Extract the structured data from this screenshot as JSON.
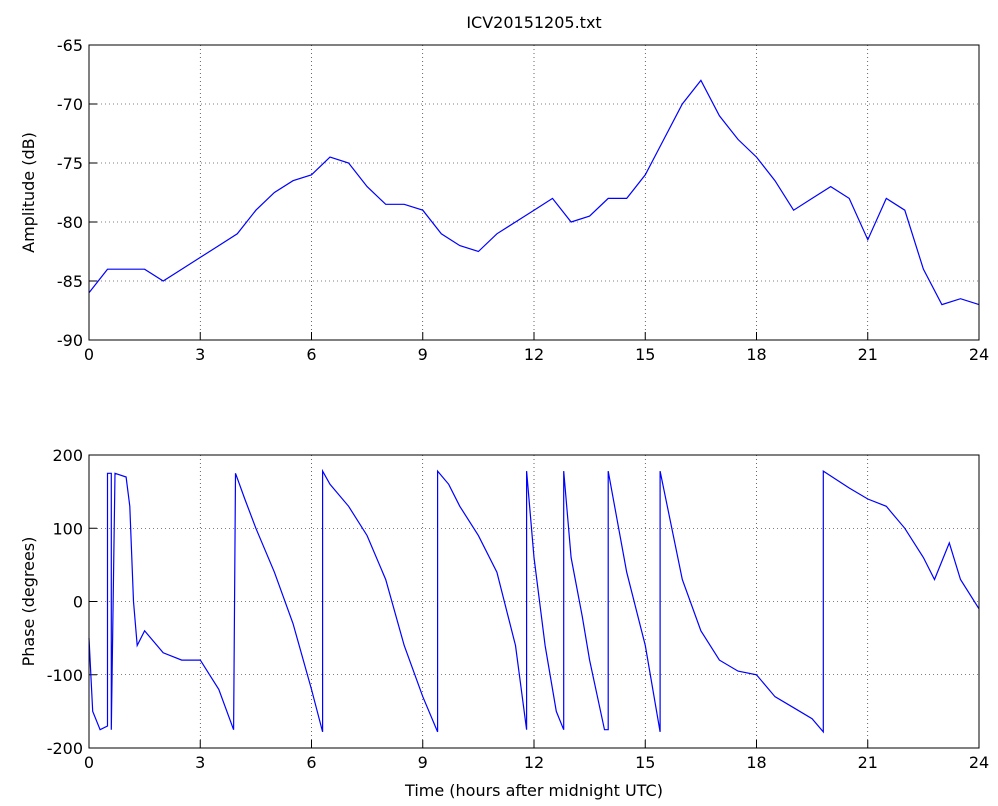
{
  "chart_data": [
    {
      "type": "line",
      "title": "ICV20151205.txt",
      "ylabel": "Amplitude (dB)",
      "color": "#0000ff",
      "grid": true,
      "xlim": [
        0,
        24
      ],
      "xticks": [
        0,
        3,
        6,
        9,
        12,
        15,
        18,
        21,
        24
      ],
      "ylim": [
        -90,
        -65
      ],
      "yticks": [
        -90,
        -85,
        -80,
        -75,
        -70,
        -65
      ],
      "x": [
        0,
        0.5,
        1,
        1.5,
        2,
        2.5,
        3,
        3.5,
        4,
        4.5,
        5,
        5.5,
        6,
        6.5,
        7,
        7.5,
        8,
        8.5,
        9,
        9.5,
        10,
        10.5,
        11,
        11.5,
        12,
        12.5,
        13,
        13.5,
        14,
        14.5,
        15,
        15.5,
        16,
        16.5,
        17,
        17.5,
        18,
        18.5,
        19,
        19.5,
        20,
        20.5,
        21,
        21.5,
        22,
        22.5,
        23,
        23.5,
        24
      ],
      "values": [
        -86,
        -84,
        -84,
        -84,
        -85,
        -84,
        -83,
        -82,
        -81,
        -79,
        -77.5,
        -76.5,
        -76,
        -74.5,
        -75,
        -77,
        -78.5,
        -78.5,
        -79,
        -81,
        -82,
        -82.5,
        -81,
        -80,
        -79,
        -78,
        -80,
        -79.5,
        -78,
        -78,
        -76,
        -73,
        -70,
        -68,
        -71,
        -73,
        -74.5,
        -76.5,
        -79,
        -78,
        -77,
        -78,
        -81.5,
        -78,
        -79,
        -84,
        -87,
        -86.5,
        -87
      ]
    },
    {
      "type": "line",
      "ylabel": "Phase (degrees)",
      "xlabel": "Time (hours after midnight UTC)",
      "color": "#0000ff",
      "grid": true,
      "xlim": [
        0,
        24
      ],
      "xticks": [
        0,
        3,
        6,
        9,
        12,
        15,
        18,
        21,
        24
      ],
      "ylim": [
        -200,
        200
      ],
      "yticks": [
        -200,
        -100,
        0,
        100,
        200
      ],
      "x": [
        0,
        0.1,
        0.3,
        0.5,
        0.5,
        0.6,
        0.6,
        0.7,
        1,
        1.1,
        1.2,
        1.3,
        1.5,
        2,
        2.5,
        3,
        3.5,
        3.9,
        3.95,
        4.2,
        4.5,
        5,
        5.5,
        6,
        6.3,
        6.3,
        6.5,
        7,
        7.5,
        8,
        8.5,
        9,
        9.4,
        9.4,
        9.7,
        10,
        10.5,
        11,
        11.5,
        11.8,
        11.8,
        12,
        12.3,
        12.6,
        12.8,
        12.8,
        13,
        13.3,
        13.5,
        13.9,
        14,
        14,
        14.5,
        15,
        15.4,
        15.4,
        16,
        16.5,
        17,
        17.5,
        18,
        18.5,
        19,
        19.5,
        19.8,
        19.8,
        20.5,
        21,
        21.5,
        22,
        22.5,
        22.8,
        23.2,
        23.5,
        24
      ],
      "values": [
        -50,
        -150,
        -175,
        -170,
        175,
        175,
        -175,
        175,
        170,
        130,
        0,
        -60,
        -40,
        -70,
        -80,
        -80,
        -120,
        -175,
        175,
        140,
        100,
        40,
        -30,
        -120,
        -178,
        178,
        160,
        130,
        90,
        30,
        -60,
        -130,
        -178,
        178,
        160,
        130,
        90,
        40,
        -60,
        -175,
        178,
        60,
        -60,
        -150,
        -175,
        178,
        60,
        -20,
        -80,
        -175,
        -175,
        178,
        40,
        -60,
        -178,
        178,
        30,
        -40,
        -80,
        -95,
        -100,
        -130,
        -145,
        -160,
        -178,
        178,
        155,
        140,
        130,
        100,
        60,
        30,
        80,
        30,
        -10
      ]
    }
  ]
}
